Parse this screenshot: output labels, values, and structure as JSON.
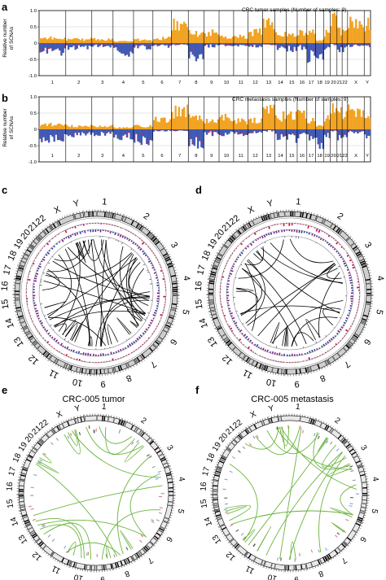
{
  "panels": {
    "a": {
      "label": "a",
      "title": "CRC tumor samples (Number of samples: 9)"
    },
    "b": {
      "label": "b",
      "title": "CRC metastasis samples (Number of samples: 9)"
    },
    "c": {
      "label": "c"
    },
    "d": {
      "label": "d"
    },
    "e": {
      "label": "e",
      "title": "CRC-005 tumor"
    },
    "f": {
      "label": "f",
      "title": "CRC-005 metastasis"
    }
  },
  "ylabel_line1": "Relative number",
  "ylabel_line2": "of SCNAs",
  "yticks_a": [
    "1.0",
    "0.5",
    "0",
    "-0.5",
    "-1.0"
  ],
  "yticks_b": [
    "1.0",
    "0.5",
    "0",
    "-0.5",
    "-1.0"
  ],
  "chromosomes": [
    "1",
    "2",
    "3",
    "4",
    "5",
    "6",
    "7",
    "8",
    "9",
    "10",
    "11",
    "12",
    "13",
    "14",
    "15",
    "16",
    "17",
    "18",
    "19",
    "20",
    "21",
    "22",
    "X",
    "Y"
  ],
  "circos_labels": [
    "1",
    "2",
    "3",
    "4",
    "5",
    "6",
    "7",
    "8",
    "9",
    "10",
    "11",
    "12",
    "13",
    "14",
    "15",
    "16",
    "17",
    "18",
    "19",
    "20",
    "21",
    "22",
    "X",
    "Y"
  ],
  "colors": {
    "gain": "#f2a322",
    "loss": "#3f59b5",
    "red": "#d6243c",
    "green": "#6ab43c",
    "purple": "#7a1f8c",
    "grey": "#9a9a9a"
  },
  "chart_data": [
    {
      "type": "bar",
      "panel": "a",
      "title": "CRC tumor samples (Number of samples: 9)",
      "ylabel": "Relative number of SCNAs",
      "ylim": [
        -1,
        1
      ],
      "series": [
        {
          "name": "gain",
          "values_by_chrom": [
            0.15,
            0.12,
            0.12,
            0.05,
            0.1,
            0.15,
            0.55,
            0.3,
            0.3,
            0.2,
            0.2,
            0.35,
            0.7,
            0.3,
            0.25,
            0.3,
            0.3,
            0.1,
            0.3,
            0.8,
            0.4,
            0.3,
            0.65,
            0.6
          ]
        },
        {
          "name": "loss",
          "values_by_chrom": [
            -0.3,
            -0.15,
            -0.1,
            -0.3,
            -0.15,
            -0.1,
            -0.05,
            -0.55,
            -0.1,
            -0.1,
            -0.1,
            -0.1,
            -0.05,
            -0.15,
            -0.2,
            -0.15,
            -0.5,
            -0.7,
            -0.2,
            -0.05,
            -0.25,
            -0.2,
            -0.1,
            -0.1
          ]
        }
      ]
    },
    {
      "type": "bar",
      "panel": "b",
      "title": "CRC metastasis samples (Number of samples: 9)",
      "ylabel": "Relative number of SCNAs",
      "ylim": [
        -1,
        1
      ],
      "series": [
        {
          "name": "gain",
          "values_by_chrom": [
            0.15,
            0.1,
            0.1,
            0.05,
            0.1,
            0.3,
            0.55,
            0.35,
            0.3,
            0.35,
            0.25,
            0.3,
            0.6,
            0.4,
            0.4,
            0.45,
            0.3,
            0.1,
            0.35,
            0.8,
            0.6,
            0.4,
            0.55,
            0.4
          ]
        },
        {
          "name": "loss",
          "values_by_chrom": [
            -0.3,
            -0.2,
            -0.15,
            -0.25,
            -0.35,
            -0.05,
            -0.05,
            -0.45,
            -0.15,
            -0.15,
            -0.15,
            -0.1,
            -0.05,
            -0.25,
            -0.3,
            -0.25,
            -0.35,
            -0.55,
            -0.2,
            -0.05,
            -0.3,
            -0.2,
            -0.1,
            -0.2
          ]
        }
      ]
    }
  ]
}
